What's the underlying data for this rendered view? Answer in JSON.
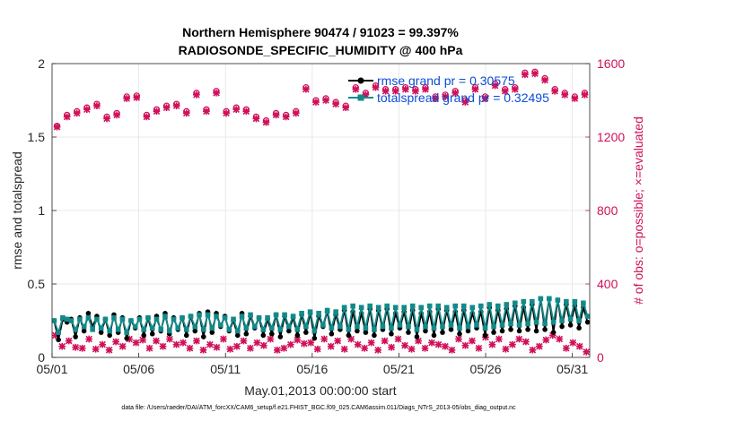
{
  "chart_data": {
    "type": "line",
    "title_line1": "Northern Hemisphere 90474 / 91023 = 99.397%",
    "title_line2": "RADIOSONDE_SPECIFIC_HUMIDITY @ 400 hPa",
    "xlabel": "May.01,2013 00:00:00 start",
    "ylabel_left": "rmse and totalspread",
    "ylabel_right": "# of obs: o=possible; ×=evaluated",
    "footer": "data file: /Users/raeder/DAI/ATM_forcXX/CAM6_setup/f.e21.FHIST_BGC.f09_025.CAM6assim.011/Diags_NTrS_2013-05/obs_diag_output.nc",
    "xlim": [
      0,
      31
    ],
    "ylim_left": [
      0,
      2
    ],
    "ylim_right": [
      0,
      1600
    ],
    "x_ticks": [
      0,
      5,
      10,
      15,
      20,
      25,
      30
    ],
    "x_tick_labels": [
      "05/01",
      "05/06",
      "05/11",
      "05/16",
      "05/21",
      "05/26",
      "05/31"
    ],
    "y_ticks_left": [
      0,
      0.5,
      1,
      1.5,
      2
    ],
    "y_tick_labels_left": [
      "0",
      "0.5",
      "1",
      "1.5",
      "2"
    ],
    "y_ticks_right": [
      0,
      400,
      800,
      1200,
      1600
    ],
    "y_tick_labels_right": [
      "0",
      "400",
      "800",
      "1200",
      "1600"
    ],
    "legend": [
      {
        "label": "rmse grand pr = 0.30575",
        "color": "#000000"
      },
      {
        "label": "totalspread grand pr = 0.32495",
        "color": "#138a8a"
      }
    ],
    "colors": {
      "rmse": "#000000",
      "spread": "#138a8a",
      "obs": "#d0105a",
      "grid": "#e3e3e3",
      "axis": "#262626"
    },
    "series": [
      {
        "name": "rmse",
        "axis": "left",
        "values": [
          0.25,
          0.12,
          0.26,
          0.24,
          0.26,
          0.14,
          0.27,
          0.18,
          0.3,
          0.21,
          0.28,
          0.17,
          0.26,
          0.15,
          0.29,
          0.17,
          0.27,
          0.13,
          0.25,
          0.2,
          0.27,
          0.15,
          0.27,
          0.16,
          0.28,
          0.18,
          0.3,
          0.16,
          0.27,
          0.19,
          0.27,
          0.15,
          0.28,
          0.18,
          0.3,
          0.14,
          0.31,
          0.17,
          0.3,
          0.21,
          0.28,
          0.18,
          0.25,
          0.15,
          0.3,
          0.16,
          0.28,
          0.2,
          0.27,
          0.15,
          0.26,
          0.16,
          0.29,
          0.14,
          0.28,
          0.18,
          0.27,
          0.15,
          0.29,
          0.17,
          0.3,
          0.13,
          0.28,
          0.21,
          0.31,
          0.16,
          0.29,
          0.19,
          0.32,
          0.15,
          0.31,
          0.18,
          0.3,
          0.17,
          0.33,
          0.15,
          0.32,
          0.19,
          0.33,
          0.16,
          0.3,
          0.2,
          0.31,
          0.17,
          0.32,
          0.14,
          0.3,
          0.18,
          0.31,
          0.15,
          0.33,
          0.17,
          0.32,
          0.19,
          0.31,
          0.16,
          0.32,
          0.18,
          0.3,
          0.2,
          0.31,
          0.15,
          0.34,
          0.17,
          0.32,
          0.18,
          0.33,
          0.19,
          0.35,
          0.18,
          0.34,
          0.19,
          0.36,
          0.18,
          0.4,
          0.19,
          0.4,
          0.17,
          0.39,
          0.21,
          0.36,
          0.22,
          0.35,
          0.2,
          0.34,
          0.24
        ]
      },
      {
        "name": "totalspread",
        "axis": "left",
        "values": [
          0.25,
          0.17,
          0.27,
          0.26,
          0.25,
          0.19,
          0.26,
          0.21,
          0.27,
          0.19,
          0.26,
          0.2,
          0.26,
          0.18,
          0.27,
          0.19,
          0.26,
          0.17,
          0.25,
          0.21,
          0.26,
          0.19,
          0.27,
          0.2,
          0.26,
          0.19,
          0.28,
          0.18,
          0.26,
          0.2,
          0.27,
          0.19,
          0.28,
          0.21,
          0.29,
          0.19,
          0.29,
          0.2,
          0.28,
          0.22,
          0.27,
          0.19,
          0.26,
          0.18,
          0.28,
          0.2,
          0.29,
          0.21,
          0.27,
          0.19,
          0.27,
          0.2,
          0.29,
          0.19,
          0.29,
          0.21,
          0.28,
          0.19,
          0.3,
          0.21,
          0.31,
          0.18,
          0.3,
          0.22,
          0.32,
          0.2,
          0.31,
          0.21,
          0.34,
          0.19,
          0.35,
          0.21,
          0.34,
          0.2,
          0.35,
          0.19,
          0.34,
          0.21,
          0.35,
          0.2,
          0.34,
          0.22,
          0.34,
          0.21,
          0.35,
          0.19,
          0.34,
          0.21,
          0.35,
          0.2,
          0.35,
          0.21,
          0.34,
          0.22,
          0.35,
          0.2,
          0.35,
          0.21,
          0.34,
          0.22,
          0.35,
          0.2,
          0.36,
          0.21,
          0.35,
          0.22,
          0.36,
          0.23,
          0.37,
          0.22,
          0.38,
          0.23,
          0.38,
          0.24,
          0.4,
          0.23,
          0.4,
          0.24,
          0.39,
          0.25,
          0.38,
          0.26,
          0.38,
          0.25,
          0.37,
          0.28
        ]
      },
      {
        "name": "obs_possible",
        "axis": "right",
        "values": [
          1260,
          1320,
          1340,
          1360,
          1380,
          1310,
          1330,
          1420,
          1425,
          1320,
          1350,
          1370,
          1380,
          1340,
          1440,
          1350,
          1450,
          1340,
          1360,
          1350,
          1310,
          1290,
          1330,
          1320,
          1340,
          1470,
          1400,
          1410,
          1390,
          1370,
          1470,
          1440,
          1480,
          1460,
          1460,
          1470,
          1460,
          1470,
          1420,
          1430,
          1450,
          1400,
          1470,
          1420,
          1490,
          1460,
          1470,
          1550,
          1555,
          1520,
          1460,
          1440,
          1420,
          1440
        ]
      },
      {
        "name": "obs_evaluated",
        "axis": "right",
        "values": [
          1255,
          1310,
          1330,
          1350,
          1370,
          1300,
          1320,
          1410,
          1415,
          1310,
          1340,
          1360,
          1370,
          1330,
          1430,
          1340,
          1440,
          1330,
          1350,
          1340,
          1300,
          1280,
          1320,
          1310,
          1330,
          1460,
          1390,
          1400,
          1380,
          1360,
          1460,
          1430,
          1470,
          1450,
          1450,
          1460,
          1450,
          1460,
          1410,
          1420,
          1440,
          1390,
          1460,
          1410,
          1480,
          1450,
          1460,
          1540,
          1545,
          1510,
          1450,
          1430,
          1410,
          1430
        ]
      },
      {
        "name": "obs_low",
        "axis": "right",
        "values": [
          120,
          60,
          90,
          55,
          50,
          100,
          45,
          70,
          40,
          85,
          60,
          100,
          80,
          95,
          50,
          90,
          60,
          100,
          70,
          80,
          50,
          90,
          40,
          70,
          55,
          100,
          45,
          60,
          90,
          50,
          80,
          65,
          100,
          40,
          50,
          70,
          95,
          75,
          80,
          45,
          100,
          60,
          90,
          45,
          100,
          70,
          50,
          80,
          40,
          90,
          55,
          100,
          65,
          45,
          90,
          50,
          80,
          70,
          60,
          40,
          100,
          65,
          90,
          50,
          110,
          70,
          100,
          45,
          70,
          100,
          85,
          40,
          60,
          95,
          120,
          100,
          50,
          80,
          60,
          30
        ]
      }
    ]
  }
}
